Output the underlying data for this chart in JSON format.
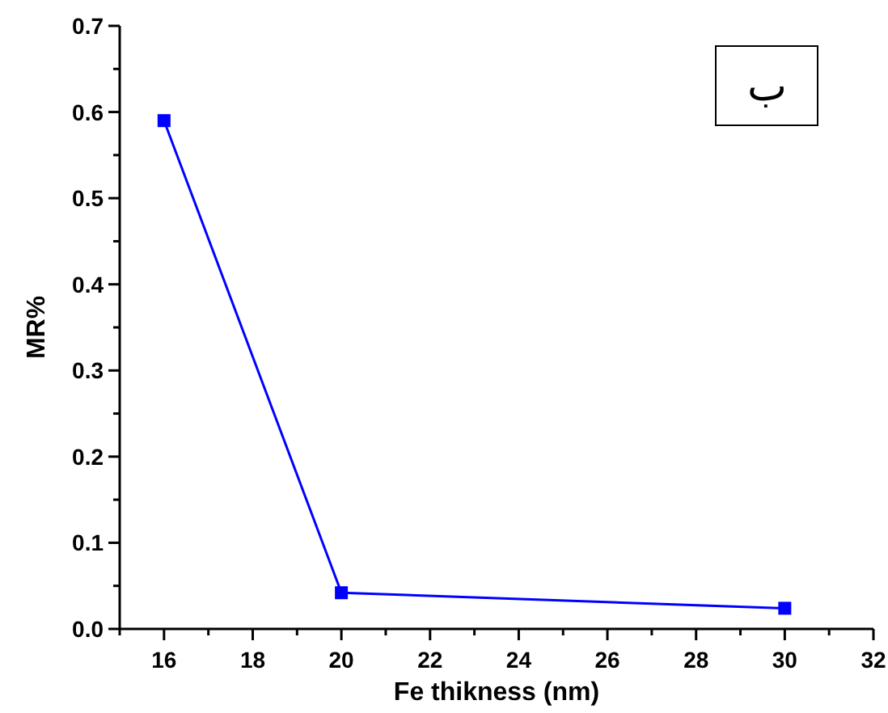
{
  "chart_data": {
    "type": "line",
    "xlabel": "Fe thikness (nm)",
    "ylabel": "MR%",
    "annotations": [
      "ب"
    ],
    "x": [
      16,
      20,
      30
    ],
    "series": [
      {
        "color": "#0000ff",
        "values": [
          0.59,
          0.042,
          0.024
        ]
      }
    ],
    "xlim": [
      15,
      32
    ],
    "xticks": [
      {
        "value": 15,
        "label": null
      },
      16,
      {
        "value": 17,
        "label": null
      },
      18,
      {
        "value": 19,
        "label": null
      },
      20,
      {
        "value": 21,
        "label": null
      },
      22,
      {
        "value": 23,
        "label": null
      },
      24,
      {
        "value": 25,
        "label": null
      },
      26,
      {
        "value": 27,
        "label": null
      },
      28,
      {
        "value": 29,
        "label": null
      },
      30,
      {
        "value": 31,
        "label": null
      },
      32
    ],
    "ylim": [
      0,
      0.7
    ],
    "yticks": [
      {
        "value": 0,
        "label": "0.0"
      },
      {
        "value": 0.05,
        "label": null
      },
      0.1,
      {
        "value": 0.15,
        "label": null
      },
      0.2,
      {
        "value": 0.25,
        "label": null
      },
      0.3,
      {
        "value": 0.35,
        "label": null
      },
      0.4,
      {
        "value": 0.45,
        "label": null
      },
      0.5,
      {
        "value": 0.55,
        "label": null
      },
      0.6,
      {
        "value": 0.65,
        "label": null
      },
      0.7
    ],
    "grid": false,
    "legend": false,
    "marker": "square",
    "line_style": "solid"
  }
}
